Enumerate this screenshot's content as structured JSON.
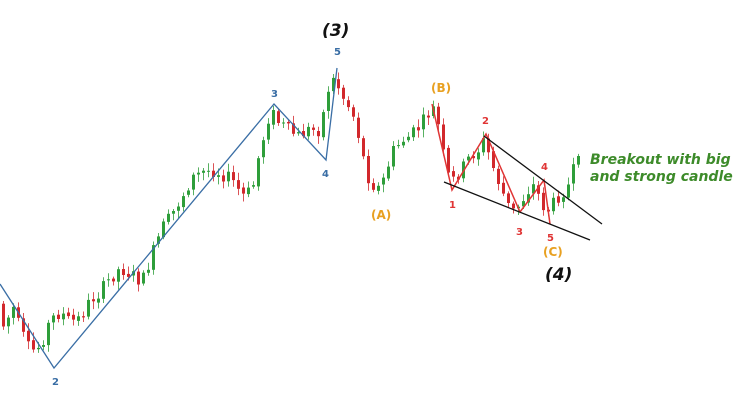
{
  "chart_data": {
    "type": "candlestick",
    "colors": {
      "up": "#2e9e3a",
      "down": "#d2282c",
      "impulse_line": "#3a6ea5",
      "corrective_line": "#e03535",
      "trendline": "#111111",
      "abc_label": "#e8a020",
      "note": "#3d8b2a"
    },
    "candle_count": 116,
    "price_path": [
      [
        0,
        295
      ],
      [
        8,
        330
      ],
      [
        16,
        305
      ],
      [
        24,
        330
      ],
      [
        34,
        352
      ],
      [
        44,
        346
      ],
      [
        54,
        320
      ],
      [
        64,
        312
      ],
      [
        74,
        322
      ],
      [
        84,
        318
      ],
      [
        94,
        300
      ],
      [
        104,
        292
      ],
      [
        114,
        278
      ],
      [
        124,
        268
      ],
      [
        134,
        274
      ],
      [
        146,
        282
      ],
      [
        156,
        254
      ],
      [
        166,
        228
      ],
      [
        176,
        214
      ],
      [
        186,
        196
      ],
      [
        196,
        178
      ],
      [
        206,
        172
      ],
      [
        216,
        170
      ],
      [
        226,
        174
      ],
      [
        236,
        180
      ],
      [
        246,
        196
      ],
      [
        256,
        190
      ],
      [
        262,
        158
      ],
      [
        268,
        134
      ],
      [
        274,
        110
      ],
      [
        282,
        122
      ],
      [
        292,
        130
      ],
      [
        302,
        136
      ],
      [
        312,
        130
      ],
      [
        322,
        130
      ],
      [
        328,
        110
      ],
      [
        334,
        78
      ],
      [
        340,
        82
      ],
      [
        346,
        96
      ],
      [
        356,
        112
      ],
      [
        364,
        142
      ],
      [
        370,
        174
      ],
      [
        376,
        184
      ],
      [
        382,
        188
      ],
      [
        388,
        178
      ],
      [
        396,
        152
      ],
      [
        406,
        140
      ],
      [
        414,
        136
      ],
      [
        424,
        126
      ],
      [
        432,
        114
      ],
      [
        438,
        108
      ],
      [
        442,
        126
      ],
      [
        448,
        160
      ],
      [
        454,
        184
      ],
      [
        460,
        176
      ],
      [
        466,
        168
      ],
      [
        474,
        156
      ],
      [
        482,
        150
      ],
      [
        488,
        140
      ],
      [
        494,
        160
      ],
      [
        500,
        176
      ],
      [
        506,
        192
      ],
      [
        512,
        206
      ],
      [
        518,
        212
      ],
      [
        526,
        200
      ],
      [
        532,
        190
      ],
      [
        538,
        185
      ],
      [
        544,
        200
      ],
      [
        550,
        212
      ],
      [
        556,
        205
      ],
      [
        562,
        196
      ],
      [
        568,
        190
      ],
      [
        574,
        184
      ],
      [
        580,
        158
      ]
    ],
    "wave_labels": {
      "degree_3": "(3)",
      "degree_4": "(4)",
      "impulse": [
        "2",
        "3",
        "4",
        "5"
      ],
      "corrective": [
        "(A)",
        "(B)",
        "(C)"
      ],
      "diagonal": [
        "1",
        "2",
        "3",
        "4",
        "5"
      ]
    },
    "annotation": [
      "Breakout with big",
      "and strong candle"
    ],
    "grid": false,
    "axes": false
  }
}
